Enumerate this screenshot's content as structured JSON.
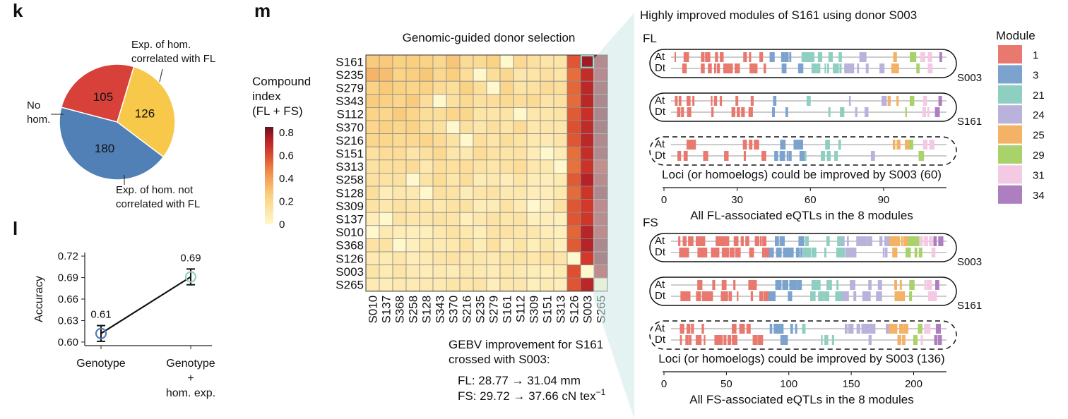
{
  "panels": {
    "k": "k",
    "l": "l",
    "m": "m"
  },
  "colors": {
    "hom_fl": "#d8403a",
    "hom_not_fl": "#f7c84a",
    "no_hom": "#5080b5"
  },
  "chart_data": [
    {
      "type": "pie",
      "panel": "k",
      "slices": [
        {
          "value": 105,
          "label_lines": [
            "Exp. of hom.",
            "correlated with FL"
          ],
          "color": "#d8403a"
        },
        {
          "value": 126,
          "label_lines": [
            "Exp. of hom. not",
            "correlated with FL"
          ],
          "color": "#f7c84a"
        },
        {
          "value": 180,
          "label_lines": [
            "No",
            "hom."
          ],
          "color": "#5080b5"
        }
      ]
    },
    {
      "type": "line",
      "panel": "l",
      "ylabel": "Accuracy",
      "ylim": [
        0.595,
        0.725
      ],
      "yticks": [
        "0.60",
        "0.63",
        "0.66",
        "0.69",
        "0.72"
      ],
      "categories": [
        {
          "lines": [
            "Genotype"
          ]
        },
        {
          "lines": [
            "Genotype",
            "+",
            "hom. exp."
          ]
        }
      ],
      "values": [
        0.612,
        0.691
      ],
      "errors": [
        0.011,
        0.011
      ],
      "value_labels": [
        "0.61",
        "0.69"
      ]
    },
    {
      "type": "heatmap",
      "panel": "m",
      "title": "Genomic-guided donor selection",
      "rows": [
        "S161",
        "S235",
        "S279",
        "S343",
        "S112",
        "S370",
        "S216",
        "S151",
        "S313",
        "S258",
        "S128",
        "S309",
        "S137",
        "S010",
        "S368",
        "S126",
        "S003",
        "S265"
      ],
      "cols": [
        "S010",
        "S137",
        "S368",
        "S258",
        "S128",
        "S343",
        "S370",
        "S216",
        "S235",
        "S279",
        "S161",
        "S112",
        "S309",
        "S151",
        "S313",
        "S126",
        "S003",
        "S265"
      ],
      "highlight": {
        "row": "S161",
        "col": "S003"
      },
      "colorbar": {
        "title_lines": [
          "Compound",
          "index",
          "(FL + FS)"
        ],
        "ticks": [
          "0",
          "0.2",
          "0.4",
          "0.6",
          "0.8"
        ],
        "range": [
          0,
          0.85
        ]
      },
      "note": {
        "lines": [
          "GEBV improvement for S161",
          "crossed with S003:"
        ],
        "fl": "FL: 28.77 → 31.04 mm",
        "fs": "FS: 29.72 → 37.66 cN tex",
        "fs_sup": "−1"
      }
    },
    {
      "type": "table",
      "panel": "m-right",
      "title": "Highly improved modules of S161 using donor S003",
      "legend": {
        "title": "Module",
        "placement": "right",
        "items": [
          {
            "label": "1",
            "color": "#e9786f"
          },
          {
            "label": "3",
            "color": "#7ba3ce"
          },
          {
            "label": "21",
            "color": "#8fcfc1"
          },
          {
            "label": "24",
            "color": "#b9b3dc"
          },
          {
            "label": "25",
            "color": "#f3b265"
          },
          {
            "label": "29",
            "color": "#a9d26a"
          },
          {
            "label": "31",
            "color": "#f3c9e3"
          },
          {
            "label": "34",
            "color": "#ad7fc0"
          }
        ]
      },
      "traits": [
        {
          "name": "FL",
          "track_labels": [
            "At",
            "Dt"
          ],
          "row_labels": [
            "S003",
            "S161",
            ""
          ],
          "caption": "Loci (or homoelogs) could be improved by S003 (60)",
          "axis_ticks": [
            "0",
            "30",
            "60",
            "90"
          ],
          "xmax": 110,
          "xlabel": "All FL-associated eQTLs in the 8 modules"
        },
        {
          "name": "FS",
          "track_labels": [
            "At",
            "Dt"
          ],
          "row_labels": [
            "S003",
            "S161",
            ""
          ],
          "caption": "Loci (or homoelogs) could be improved by S003 (136)",
          "axis_ticks": [
            "0",
            "50",
            "100",
            "150",
            "200"
          ],
          "xmax": 215,
          "xlabel": "All FS-associated eQTLs in the 8 modules"
        }
      ]
    }
  ]
}
